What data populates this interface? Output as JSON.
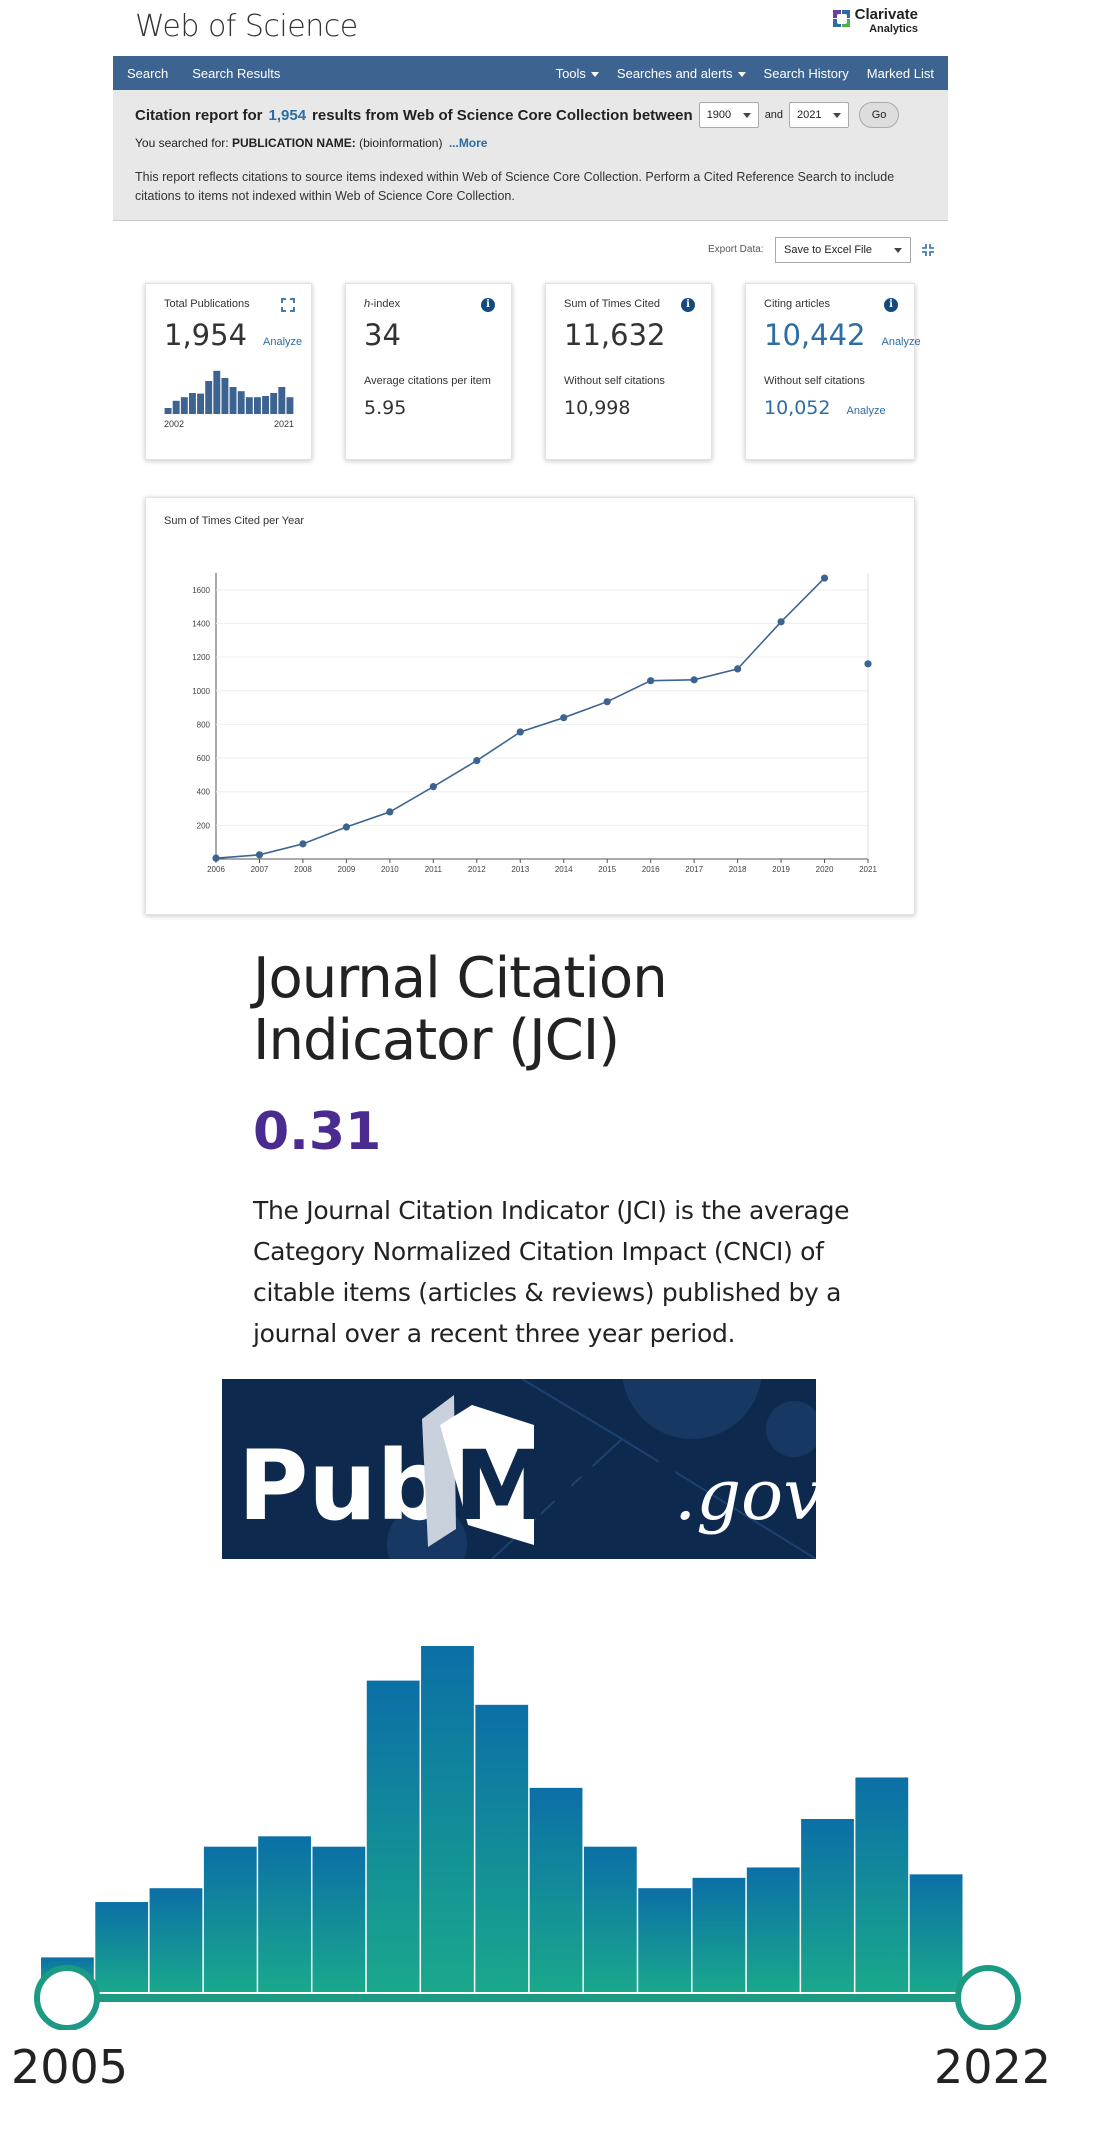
{
  "wos": {
    "title": "Web of Science",
    "brand_line1": "Clarivate",
    "brand_line2": "Analytics",
    "nav": {
      "left": [
        "Search",
        "Search Results"
      ],
      "tools": "Tools",
      "alerts": "Searches and alerts",
      "history": "Search History",
      "marked": "Marked List"
    },
    "report": {
      "prefix": "Citation report for",
      "count": "1,954",
      "suffix": "results from Web of Science Core Collection between",
      "from_year": "1900",
      "and": "and",
      "to_year": "2021",
      "go": "Go",
      "searched_prefix": "You searched for:",
      "searched_query": "PUBLICATION NAME:",
      "searched_value": "(bioinformation)",
      "more": "...More",
      "disclaimer": "This report reflects citations to source items indexed within Web of Science Core Collection. Perform a Cited Reference Search to include citations to items not indexed within Web of Science Core Collection."
    },
    "export": {
      "label": "Export Data:",
      "option": "Save to Excel File"
    },
    "cards": {
      "publications": {
        "label": "Total Publications",
        "value": "1,954",
        "analyze": "Analyze",
        "start_year": "2002",
        "end_year": "2021",
        "bars": [
          0.1,
          0.22,
          0.28,
          0.35,
          0.34,
          0.55,
          0.72,
          0.6,
          0.45,
          0.38,
          0.28,
          0.28,
          0.3,
          0.35,
          0.45,
          0.28
        ]
      },
      "hindex": {
        "label": "-index",
        "label_italic": "h",
        "value": "34",
        "sub_label": "Average citations per item",
        "sub_value": "5.95"
      },
      "times_cited": {
        "label": "Sum of Times Cited",
        "value": "11,632",
        "sub_label": "Without self citations",
        "sub_value": "10,998"
      },
      "citing": {
        "label": "Citing articles",
        "value": "10,442",
        "analyze": "Analyze",
        "sub_label": "Without self citations",
        "sub_value": "10,052",
        "sub_analyze": "Analyze"
      }
    }
  },
  "chart_data": {
    "type": "line",
    "title": "Sum of Times Cited per Year",
    "xlabel": "",
    "ylabel": "",
    "x": [
      "2006",
      "2007",
      "2008",
      "2009",
      "2010",
      "2011",
      "2012",
      "2013",
      "2014",
      "2015",
      "2016",
      "2017",
      "2018",
      "2019",
      "2020",
      "2021"
    ],
    "values": [
      5,
      25,
      90,
      190,
      280,
      430,
      585,
      755,
      840,
      935,
      1060,
      1065,
      1130,
      1410,
      1670,
      1160
    ],
    "y_ticks": [
      "200",
      "400",
      "600",
      "800",
      "1000",
      "1200",
      "1400",
      "1600"
    ],
    "ylim": [
      0,
      1700
    ],
    "grid": true,
    "line_color": "#3d6491"
  },
  "jci": {
    "title_line1": "Journal Citation",
    "title_line2": "Indicator (JCI)",
    "value": "0.31",
    "description": "The Journal Citation Indicator (JCI) is the average Category Normalized Citation Impact (CNCI) of citable items (articles & reviews) published by a journal over a recent three year period."
  },
  "pubmed": {
    "pub": "Pub",
    "med": "Med",
    "gov": ".gov"
  },
  "histogram": {
    "start_label": "2005",
    "end_label": "2022",
    "values": [
      0.1,
      0.26,
      0.3,
      0.42,
      0.45,
      0.42,
      0.9,
      1.0,
      0.83,
      0.59,
      0.42,
      0.3,
      0.33,
      0.36,
      0.5,
      0.62,
      0.34
    ],
    "colors": {
      "top": "#0b6fa6",
      "bottom": "#1aa88c",
      "track": "#1c9a84"
    }
  }
}
